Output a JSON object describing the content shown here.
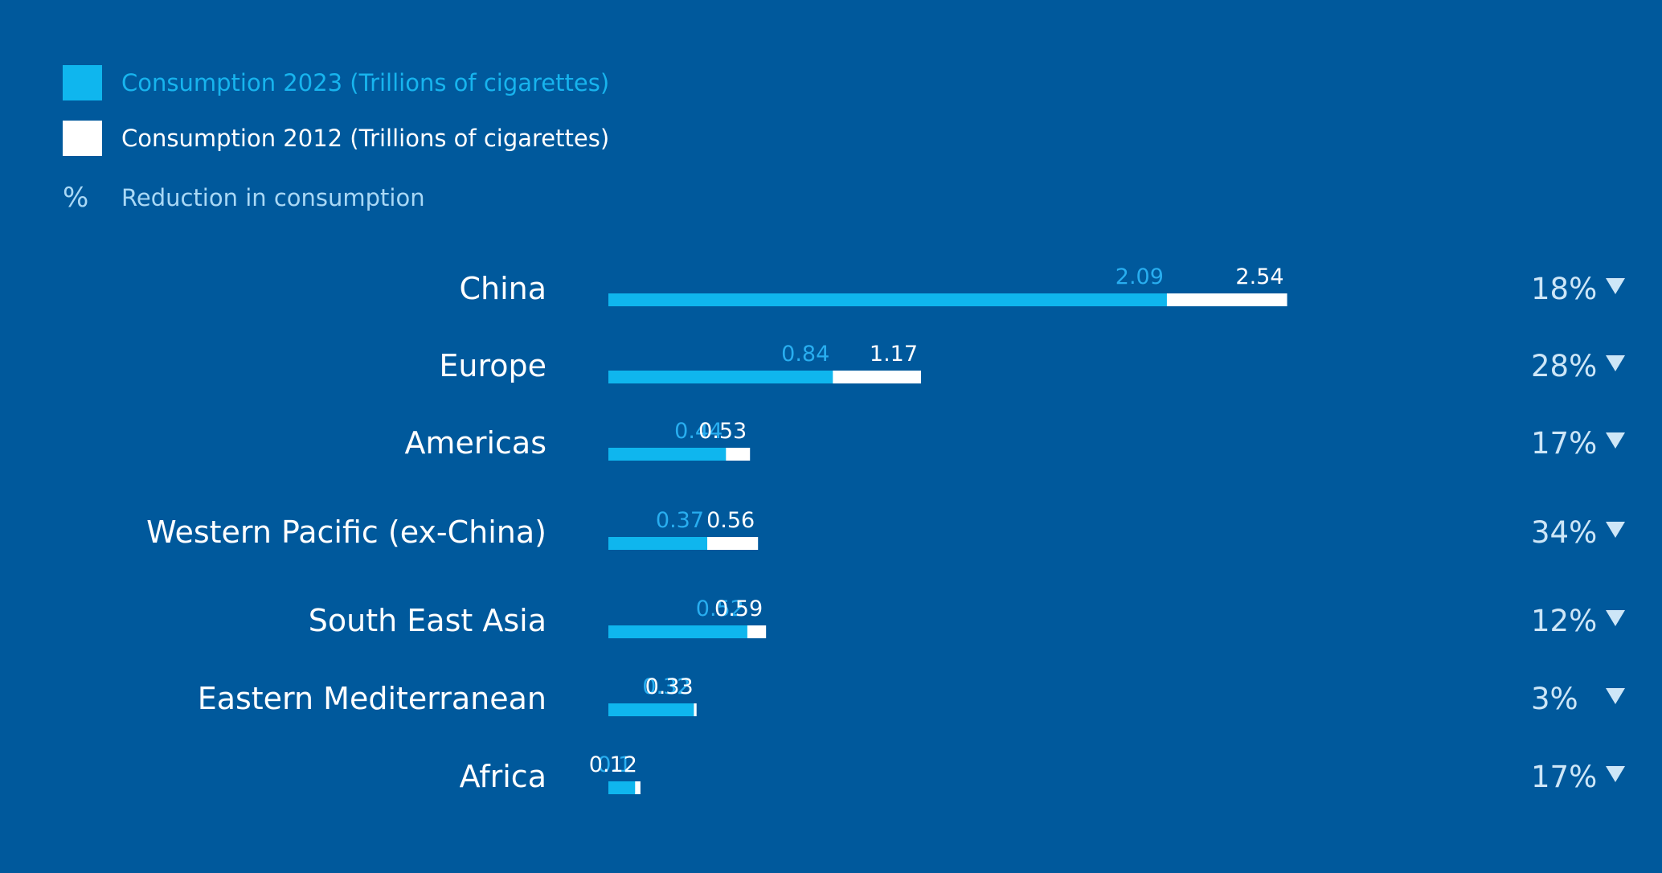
{
  "legend": {
    "items": [
      {
        "label": "Consumption 2023 (Trillions of cigarettes)",
        "color": "#0fb6ee",
        "text_color": "#17b4ee"
      },
      {
        "label": "Consumption 2012 (Trillions of cigarettes)",
        "color": "#ffffff",
        "text_color": "#ffffff"
      },
      {
        "symbol": "%",
        "label": "Reduction in consumption",
        "text_color": "#a9d8f5"
      }
    ]
  },
  "colors": {
    "background": "#00599c",
    "series_2023": "#0fb6ee",
    "series_2012": "#ffffff",
    "value_2023_text": "#28aef0",
    "value_2012_text": "#ffffff",
    "category_text": "#ffffff",
    "reduction_text": "#cde6f7"
  },
  "chart_data": {
    "type": "bar",
    "orientation": "horizontal",
    "categories": [
      "China",
      "Europe",
      "Americas",
      "Western Pacific (ex-China)",
      "South East Asia",
      "Eastern Mediterranean",
      "Africa"
    ],
    "series": [
      {
        "name": "Consumption 2023 (Trillions of cigarettes)",
        "values": [
          2.09,
          0.84,
          0.44,
          0.37,
          0.52,
          0.32,
          0.1
        ],
        "labels": [
          "2.09",
          "0.84",
          "0.44",
          "0.37",
          "0.52",
          "0.32",
          "0.1"
        ]
      },
      {
        "name": "Consumption 2012 (Trillions of cigarettes)",
        "values": [
          2.54,
          1.17,
          0.53,
          0.56,
          0.59,
          0.33,
          0.12
        ],
        "labels": [
          "2.54",
          "1.17",
          "0.53",
          "0.56",
          "0.59",
          "0.33",
          "0.12"
        ]
      }
    ],
    "reduction": {
      "name": "Reduction in consumption",
      "labels": [
        "18%",
        "28%",
        "17%",
        "34%",
        "12%",
        "3%",
        "17%"
      ],
      "indicator": "down-triangle"
    },
    "grid": false,
    "legend_position": "top-left"
  }
}
